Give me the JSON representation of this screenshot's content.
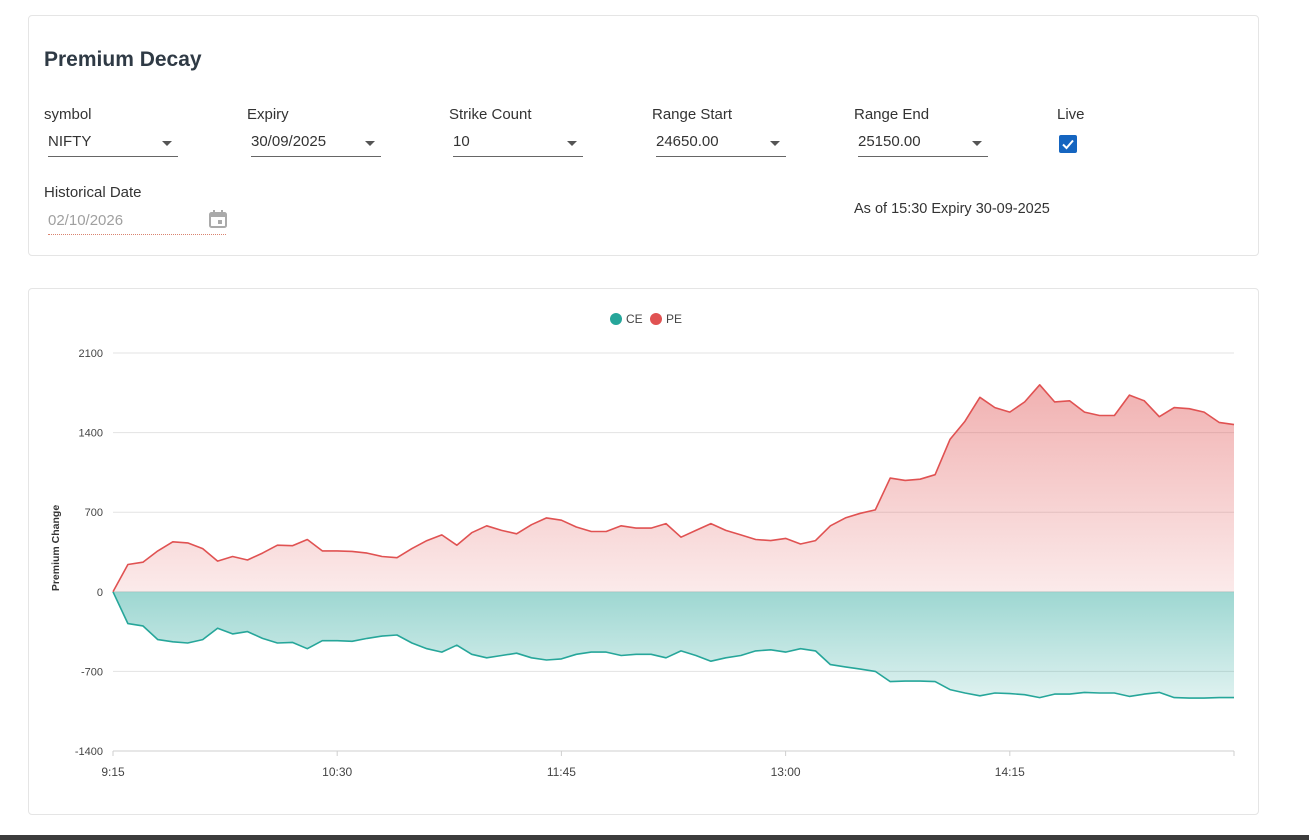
{
  "filters": {
    "title": "Premium Decay",
    "symbol": {
      "label": "symbol",
      "value": "NIFTY"
    },
    "expiry": {
      "label": "Expiry",
      "value": "30/09/2025"
    },
    "strike_count": {
      "label": "Strike Count",
      "value": "10"
    },
    "range_start": {
      "label": "Range Start",
      "value": "24650.00"
    },
    "range_end": {
      "label": "Range End",
      "value": "25150.00"
    },
    "live": {
      "label": "Live",
      "checked": true
    },
    "historical_date": {
      "label": "Historical Date",
      "value": "02/10/2026"
    },
    "as_of": "As of 15:30 Expiry 30-09-2025"
  },
  "colors": {
    "ce": "#26a69a",
    "pe": "#e05252",
    "checkbox": "#1565c0"
  },
  "chart_data": {
    "type": "area",
    "title": "",
    "xlabel": "",
    "ylabel": "Premium Change",
    "ylim": [
      -1400,
      2100
    ],
    "yticks": [
      2100,
      1400,
      700,
      0,
      -700,
      -1400
    ],
    "x_ticks": [
      {
        "label": "9:15",
        "value": 0
      },
      {
        "label": "10:30",
        "value": 15
      },
      {
        "label": "11:45",
        "value": 30
      },
      {
        "label": "13:00",
        "value": 45
      },
      {
        "label": "14:15",
        "value": 60
      }
    ],
    "x_range": [
      0,
      75
    ],
    "x_interval_minutes": 5,
    "legend_position": "top-center",
    "series": [
      {
        "name": "CE",
        "values": [
          0,
          -280,
          -300,
          -420,
          -440,
          -450,
          -420,
          -320,
          -370,
          -350,
          -410,
          -450,
          -445,
          -500,
          -430,
          -430,
          -435,
          -410,
          -390,
          -380,
          -450,
          -500,
          -530,
          -470,
          -550,
          -580,
          -560,
          -540,
          -580,
          -600,
          -590,
          -550,
          -530,
          -530,
          -560,
          -550,
          -550,
          -580,
          -520,
          -560,
          -610,
          -580,
          -560,
          -520,
          -510,
          -530,
          -500,
          -520,
          -640,
          -660,
          -680,
          -700,
          -790,
          -785,
          -785,
          -790,
          -860,
          -890,
          -915,
          -890,
          -895,
          -905,
          -930,
          -900,
          -900,
          -885,
          -890,
          -890,
          -920,
          -900,
          -885,
          -930,
          -935,
          -935,
          -930,
          -930
        ]
      },
      {
        "name": "PE",
        "values": [
          0,
          240,
          260,
          360,
          440,
          430,
          380,
          270,
          310,
          280,
          340,
          410,
          405,
          460,
          360,
          360,
          355,
          340,
          310,
          300,
          380,
          450,
          500,
          410,
          520,
          580,
          540,
          510,
          590,
          650,
          630,
          570,
          530,
          530,
          580,
          560,
          560,
          600,
          480,
          540,
          600,
          540,
          500,
          460,
          450,
          470,
          420,
          450,
          580,
          650,
          690,
          720,
          1000,
          980,
          990,
          1030,
          1340,
          1500,
          1710,
          1620,
          1580,
          1670,
          1820,
          1670,
          1680,
          1580,
          1550,
          1550,
          1730,
          1680,
          1540,
          1620,
          1610,
          1580,
          1490,
          1470
        ]
      }
    ]
  }
}
